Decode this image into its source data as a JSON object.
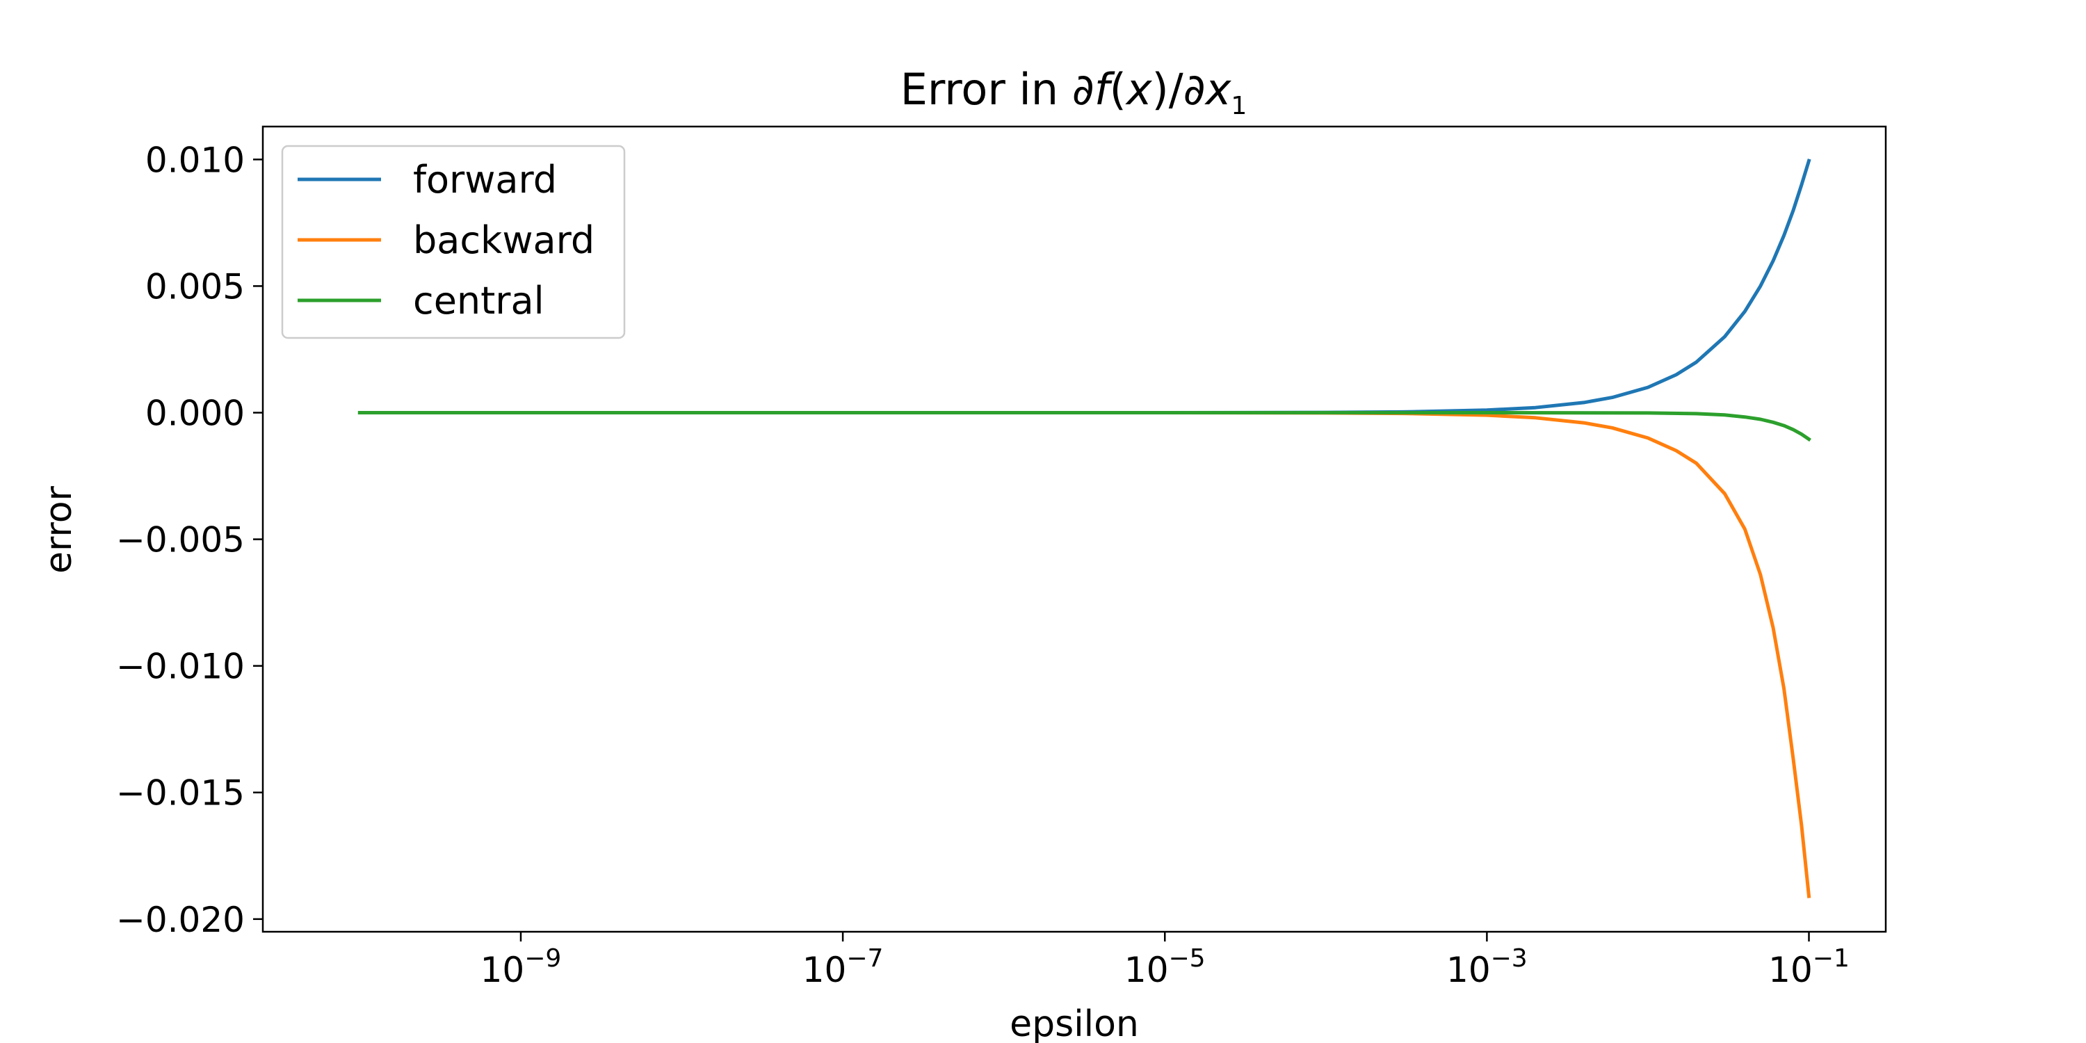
{
  "chart_data": {
    "type": "line",
    "title": {
      "prefix": "Error in ∂",
      "f": "f",
      "open": "(",
      "x": "x",
      "close": ")/∂",
      "x2": "x",
      "sub": "1"
    },
    "xlabel": "epsilon",
    "ylabel": "error",
    "x_scale": "log",
    "xlim": [
      2.5e-11,
      0.3
    ],
    "ylim": [
      -0.0205,
      0.0113
    ],
    "grid": false,
    "legend_position": "top-left",
    "x_ticks": [
      {
        "value": 1e-09,
        "base": "10",
        "exp": "−9"
      },
      {
        "value": 1e-07,
        "base": "10",
        "exp": "−7"
      },
      {
        "value": 1e-05,
        "base": "10",
        "exp": "−5"
      },
      {
        "value": 0.001,
        "base": "10",
        "exp": "−3"
      },
      {
        "value": 0.1,
        "base": "10",
        "exp": "−1"
      }
    ],
    "y_ticks": [
      {
        "value": 0.01,
        "label": "0.010"
      },
      {
        "value": 0.005,
        "label": "0.005"
      },
      {
        "value": 0.0,
        "label": "0.000"
      },
      {
        "value": -0.005,
        "label": "−0.005"
      },
      {
        "value": -0.01,
        "label": "−0.010"
      },
      {
        "value": -0.015,
        "label": "−0.015"
      },
      {
        "value": -0.02,
        "label": "−0.020"
      }
    ],
    "series": [
      {
        "name": "forward",
        "color": "#1f77b4",
        "x": [
          1e-10,
          1e-08,
          1e-06,
          1e-05,
          0.0001,
          0.0003,
          0.001,
          0.002,
          0.004,
          0.006,
          0.01,
          0.015,
          0.02,
          0.03,
          0.04,
          0.05,
          0.06,
          0.07,
          0.08,
          0.09,
          0.1
        ],
        "y": [
          0,
          0,
          0,
          0,
          1e-05,
          3e-05,
          0.0001,
          0.0002,
          0.0004,
          0.0006,
          0.001,
          0.0015,
          0.002,
          0.003,
          0.004,
          0.005,
          0.006,
          0.007,
          0.008,
          0.009,
          0.00995
        ]
      },
      {
        "name": "backward",
        "color": "#ff7f0e",
        "x": [
          1e-10,
          1e-08,
          1e-06,
          1e-05,
          0.0001,
          0.0003,
          0.001,
          0.002,
          0.004,
          0.006,
          0.01,
          0.015,
          0.02,
          0.03,
          0.04,
          0.05,
          0.06,
          0.07,
          0.08,
          0.09,
          0.1
        ],
        "y": [
          0,
          0,
          0,
          0,
          -1e-05,
          -3e-05,
          -0.0001,
          -0.0002,
          -0.0004,
          -0.0006,
          -0.001,
          -0.0015,
          -0.002,
          -0.0032,
          -0.0046,
          -0.0064,
          -0.0085,
          -0.0109,
          -0.0137,
          -0.0163,
          -0.0191
        ]
      },
      {
        "name": "central",
        "color": "#2ca02c",
        "x": [
          1e-10,
          1e-08,
          1e-06,
          0.0001,
          0.001,
          0.01,
          0.02,
          0.03,
          0.04,
          0.05,
          0.06,
          0.07,
          0.08,
          0.09,
          0.1
        ],
        "y": [
          0,
          0,
          0,
          0,
          0,
          -1e-05,
          -4e-05,
          -9e-05,
          -0.00017,
          -0.00026,
          -0.00038,
          -0.00051,
          -0.00067,
          -0.00085,
          -0.00105
        ]
      }
    ]
  }
}
